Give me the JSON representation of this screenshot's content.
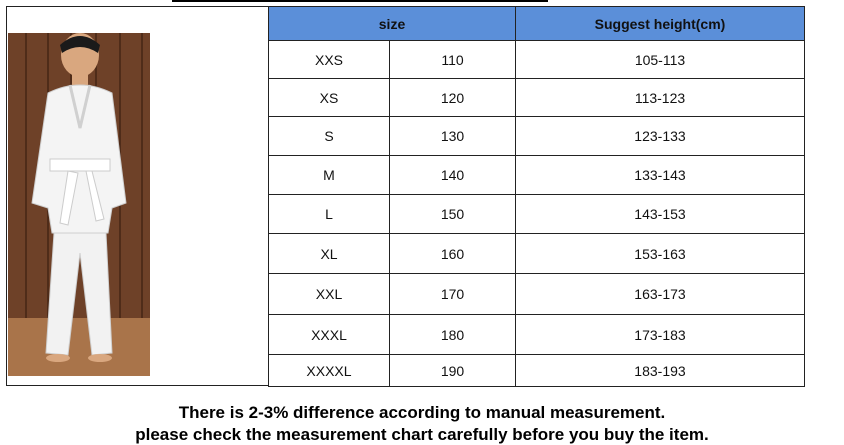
{
  "table": {
    "header": [
      "size",
      "Suggest height(cm)"
    ],
    "rows": [
      [
        "XXS",
        110,
        "105-113"
      ],
      [
        "XS",
        120,
        "113-123"
      ],
      [
        "S",
        130,
        "123-133"
      ],
      [
        "M",
        140,
        "133-143"
      ],
      [
        "L",
        150,
        "143-153"
      ],
      [
        "XL",
        160,
        "153-163"
      ],
      [
        "XXL",
        170,
        "163-173"
      ],
      [
        "XXXL",
        180,
        "173-183"
      ],
      [
        "XXXXL",
        190,
        "183-193"
      ]
    ]
  },
  "note": {
    "lines": [
      "There is 2-3% difference according to manual measurement.",
      "please check the measurement chart carefully before you buy the item."
    ]
  }
}
